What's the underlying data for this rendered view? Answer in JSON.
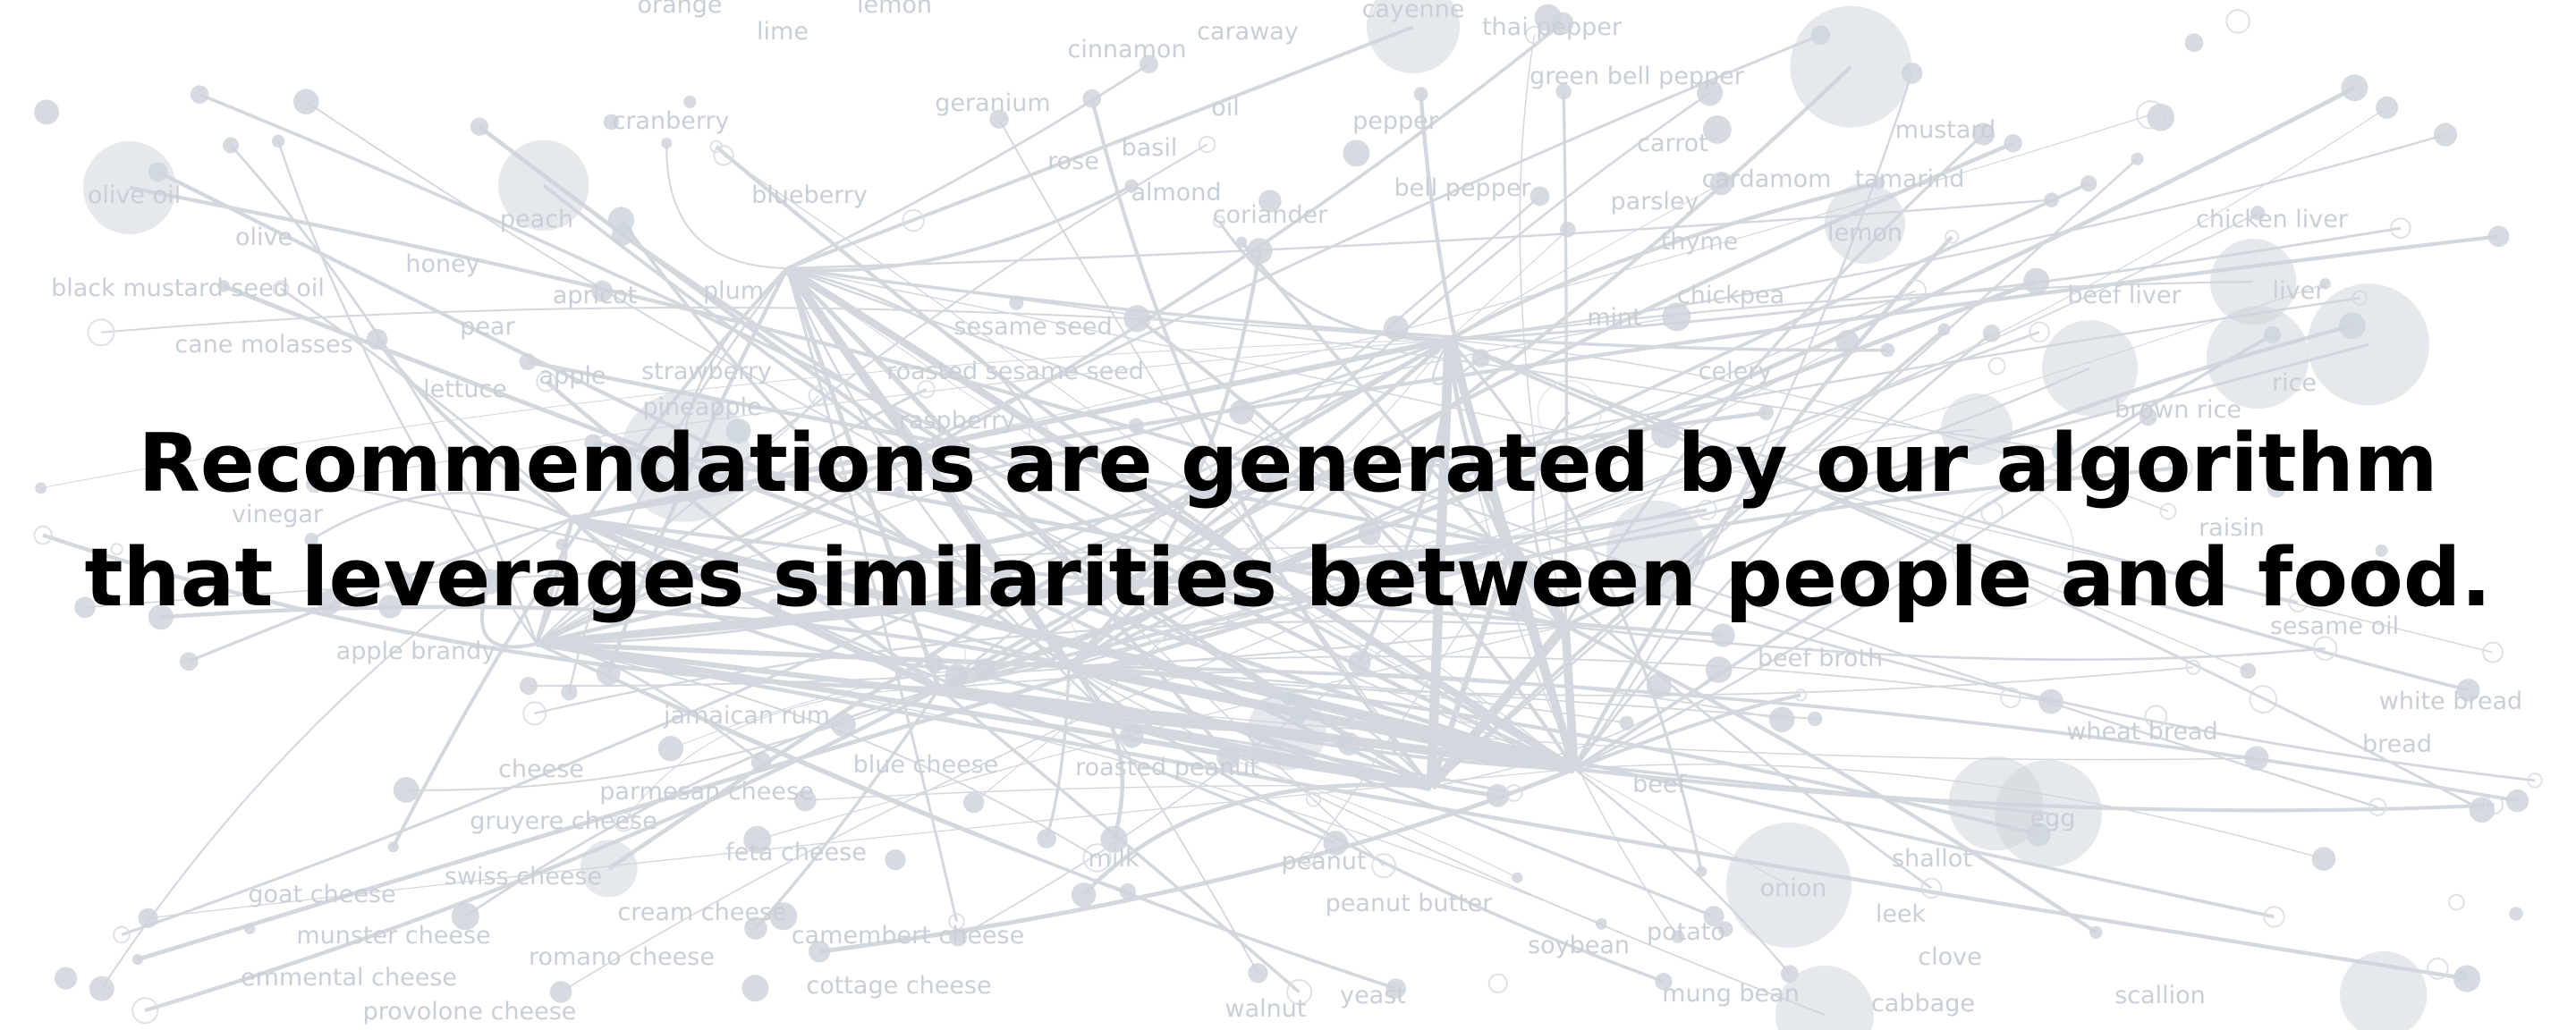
{
  "background": {
    "labels": [
      "orange",
      "lime",
      "lemon",
      "cinnamon",
      "caraway",
      "cayenne",
      "thai pepper",
      "green bell pepper",
      "cranberry",
      "geranium",
      "rose",
      "basil",
      "oil",
      "pepper",
      "mustard",
      "carrot",
      "cardamom",
      "tamarind",
      "olive oil",
      "olive",
      "peach",
      "blueberry",
      "almond",
      "coriander",
      "bell pepper",
      "parsley",
      "thyme",
      "lemon",
      "chicken liver",
      "black mustard seed oil",
      "honey",
      "apricot",
      "plum",
      "chickpea",
      "beef liver",
      "liver",
      "cane molasses",
      "pear",
      "sesame seed",
      "mint",
      "lettuce",
      "apple",
      "strawberry",
      "roasted sesame seed",
      "celery",
      "pineapple",
      "raspberry",
      "rice",
      "brown rice",
      "vinegar",
      "raisin",
      "sesame oil",
      "apple brandy",
      "beef broth",
      "jamaican rum",
      "blue cheese",
      "roasted peanut",
      "white bread",
      "wheat bread",
      "bread",
      "cheese",
      "parmesan cheese",
      "beef",
      "gruyere cheese",
      "feta cheese",
      "milk",
      "peanut",
      "egg",
      "swiss cheese",
      "shallot",
      "goat cheese",
      "cream cheese",
      "peanut butter",
      "onion",
      "leek",
      "munster cheese",
      "romano cheese",
      "camembert cheese",
      "soybean",
      "potato",
      "clove",
      "emmental cheese",
      "cottage cheese",
      "mung bean",
      "cabbage",
      "scallion",
      "provolone cheese",
      "walnut",
      "yeast"
    ]
  },
  "headline": {
    "line1": "Recommendations are generated by our algorithm",
    "line2": "that leverages similarities between people and food."
  }
}
